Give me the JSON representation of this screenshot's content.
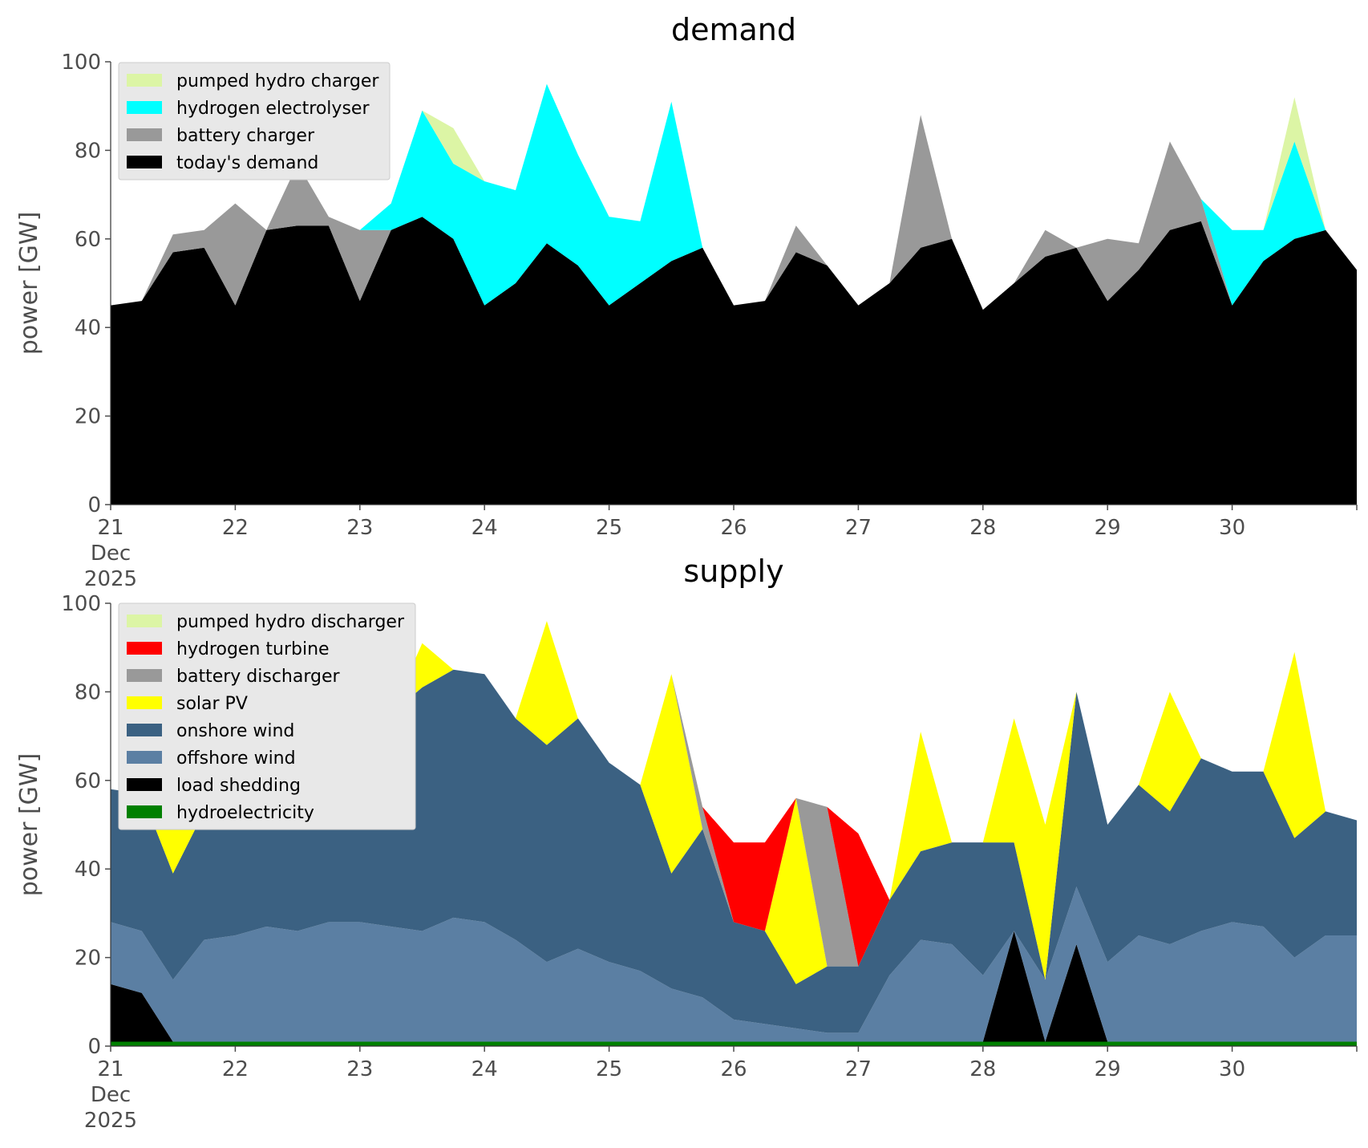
{
  "chart_data": [
    {
      "type": "area",
      "title": "demand",
      "xlabel": "",
      "ylabel": "power [GW]",
      "ylim": [
        0,
        100
      ],
      "y_ticks": [
        "0",
        "20",
        "40",
        "60",
        "80",
        "100"
      ],
      "x_ticks": [
        "21\nDec\n2025",
        "22",
        "23",
        "24",
        "25",
        "26",
        "27",
        "28",
        "29",
        "30"
      ],
      "x_range_days": [
        21,
        31
      ],
      "grid": false,
      "legend_position": "top-left",
      "x": [
        21,
        21.25,
        21.5,
        21.75,
        22,
        22.25,
        22.5,
        22.75,
        23,
        23.25,
        23.5,
        23.75,
        24,
        24.25,
        24.5,
        24.75,
        25,
        25.25,
        25.5,
        25.75,
        26,
        26.25,
        26.5,
        26.75,
        27,
        27.25,
        27.5,
        27.75,
        28,
        28.25,
        28.5,
        28.75,
        29,
        29.25,
        29.5,
        29.75,
        30,
        30.25,
        30.5,
        30.75,
        31
      ],
      "series": [
        {
          "name": "today's demand",
          "color": "#000000",
          "values": [
            45,
            46,
            57,
            58,
            45,
            62,
            63,
            63,
            46,
            62,
            65,
            60,
            45,
            50,
            59,
            54,
            45,
            50,
            55,
            58,
            45,
            46,
            57,
            54,
            45,
            50,
            58,
            60,
            44,
            50,
            56,
            58,
            46,
            53,
            62,
            64,
            45,
            55,
            60,
            62,
            53
          ]
        },
        {
          "name": "battery charger",
          "color": "#999999",
          "values": [
            0,
            0,
            4,
            4,
            23,
            0,
            14,
            2,
            16,
            0,
            0,
            0,
            0,
            0,
            0,
            0,
            0,
            0,
            0,
            0,
            0,
            0,
            6,
            0,
            0,
            0,
            30,
            0,
            0,
            0,
            6,
            0,
            14,
            6,
            20,
            5,
            0,
            0,
            0,
            0,
            0
          ]
        },
        {
          "name": "hydrogen electrolyser",
          "color": "#00ffff",
          "values": [
            0,
            0,
            0,
            0,
            0,
            0,
            0,
            0,
            0,
            6,
            24,
            17,
            28,
            21,
            36,
            25,
            20,
            14,
            36,
            0,
            0,
            0,
            0,
            0,
            0,
            0,
            0,
            0,
            0,
            0,
            0,
            0,
            0,
            0,
            0,
            0,
            17,
            7,
            22,
            0,
            0
          ]
        },
        {
          "name": "pumped hydro charger",
          "color": "#dcf5a5",
          "values": [
            0,
            0,
            0,
            0,
            0,
            0,
            0,
            0,
            0,
            0,
            0,
            8,
            0,
            0,
            0,
            0,
            0,
            0,
            0,
            0,
            0,
            0,
            0,
            0,
            0,
            0,
            0,
            0,
            0,
            0,
            0,
            0,
            0,
            0,
            0,
            0,
            0,
            0,
            10,
            0,
            0
          ]
        }
      ],
      "legend": [
        "pumped hydro charger",
        "hydrogen electrolyser",
        "battery charger",
        "today's demand"
      ]
    },
    {
      "type": "area",
      "title": "supply",
      "xlabel": "",
      "ylabel": "power [GW]",
      "ylim": [
        0,
        100
      ],
      "y_ticks": [
        "0",
        "20",
        "40",
        "60",
        "80",
        "100"
      ],
      "x_ticks": [
        "21\nDec\n2025",
        "22",
        "23",
        "24",
        "25",
        "26",
        "27",
        "28",
        "29",
        "30"
      ],
      "x_range_days": [
        21,
        31
      ],
      "grid": false,
      "legend_position": "top-left",
      "x": [
        21,
        21.25,
        21.5,
        21.75,
        22,
        22.25,
        22.5,
        22.75,
        23,
        23.25,
        23.5,
        23.75,
        24,
        24.25,
        24.5,
        24.75,
        25,
        25.25,
        25.5,
        25.75,
        26,
        26.25,
        26.5,
        26.75,
        27,
        27.25,
        27.5,
        27.75,
        28,
        28.25,
        28.5,
        28.75,
        29,
        29.25,
        29.5,
        29.75,
        30,
        30.25,
        30.5,
        30.75,
        31
      ],
      "series": [
        {
          "name": "hydroelectricity",
          "color": "#008000",
          "values": [
            1,
            1,
            1,
            1,
            1,
            1,
            1,
            1,
            1,
            1,
            1,
            1,
            1,
            1,
            1,
            1,
            1,
            1,
            1,
            1,
            1,
            1,
            1,
            1,
            1,
            1,
            1,
            1,
            1,
            1,
            1,
            1,
            1,
            1,
            1,
            1,
            1,
            1,
            1,
            1,
            1
          ]
        },
        {
          "name": "load shedding",
          "color": "#000000",
          "values": [
            13,
            11,
            0,
            0,
            0,
            0,
            0,
            0,
            0,
            0,
            0,
            0,
            0,
            0,
            0,
            0,
            0,
            0,
            0,
            0,
            0,
            0,
            0,
            0,
            0,
            0,
            0,
            0,
            0,
            25,
            0,
            22,
            0,
            0,
            0,
            0,
            0,
            0,
            0,
            0,
            0
          ]
        },
        {
          "name": "offshore wind",
          "color": "#5b7fa3",
          "values": [
            14,
            14,
            14,
            23,
            24,
            26,
            25,
            27,
            27,
            26,
            25,
            28,
            27,
            23,
            18,
            21,
            18,
            16,
            12,
            10,
            5,
            4,
            3,
            2,
            2,
            15,
            23,
            22,
            15,
            0,
            14,
            13,
            18,
            24,
            22,
            25,
            27,
            26,
            19,
            24,
            24
          ]
        },
        {
          "name": "onshore wind",
          "color": "#3b6182",
          "values": [
            30,
            31,
            24,
            29,
            37,
            40,
            45,
            46,
            47,
            48,
            55,
            56,
            56,
            50,
            49,
            52,
            45,
            42,
            26,
            38,
            22,
            21,
            10,
            15,
            15,
            17,
            20,
            23,
            30,
            20,
            0,
            44,
            31,
            34,
            30,
            39,
            34,
            35,
            27,
            28,
            26
          ]
        },
        {
          "name": "solar PV",
          "color": "#ffff00",
          "values": [
            0,
            0,
            10,
            0,
            0,
            0,
            0,
            0,
            0,
            0,
            10,
            0,
            0,
            0,
            28,
            0,
            0,
            0,
            45,
            0,
            0,
            0,
            42,
            0,
            0,
            0,
            27,
            0,
            0,
            28,
            35,
            0,
            0,
            0,
            27,
            0,
            0,
            0,
            42,
            0,
            0
          ]
        },
        {
          "name": "battery discharger",
          "color": "#999999",
          "values": [
            0,
            0,
            0,
            0,
            0,
            0,
            0,
            0,
            0,
            0,
            0,
            0,
            0,
            0,
            0,
            0,
            0,
            0,
            0,
            5,
            0,
            0,
            0,
            36,
            0,
            0,
            0,
            0,
            0,
            0,
            0,
            0,
            0,
            0,
            0,
            0,
            0,
            0,
            0,
            0,
            0
          ]
        },
        {
          "name": "hydrogen turbine",
          "color": "#ff0000",
          "values": [
            0,
            0,
            0,
            0,
            0,
            0,
            0,
            0,
            0,
            0,
            0,
            0,
            0,
            0,
            0,
            0,
            0,
            0,
            0,
            0,
            18,
            20,
            0,
            0,
            30,
            0,
            0,
            0,
            0,
            0,
            0,
            0,
            0,
            0,
            0,
            0,
            0,
            0,
            0,
            0,
            0
          ]
        },
        {
          "name": "pumped hydro discharger",
          "color": "#dcf5a5",
          "values": [
            0,
            0,
            0,
            0,
            0,
            0,
            0,
            0,
            0,
            0,
            0,
            0,
            0,
            0,
            0,
            0,
            0,
            0,
            0,
            0,
            0,
            0,
            0,
            0,
            0,
            0,
            0,
            0,
            0,
            0,
            0,
            0,
            0,
            0,
            0,
            0,
            0,
            0,
            0,
            0,
            0
          ]
        }
      ],
      "legend": [
        "pumped hydro discharger",
        "hydrogen turbine",
        "battery discharger",
        "solar PV",
        "onshore wind",
        "offshore wind",
        "load shedding",
        "hydroelectricity"
      ]
    }
  ]
}
